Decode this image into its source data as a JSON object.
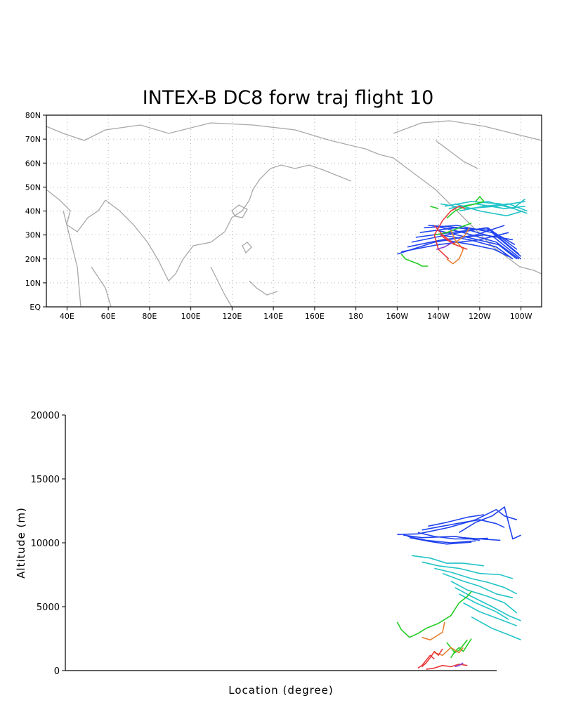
{
  "chart_data": [
    {
      "type": "line",
      "title": "INTEX-B DC8 forw traj flight 10",
      "xlabel": "",
      "ylabel": "",
      "xlim": [
        30,
        270
      ],
      "ylim": [
        0,
        80
      ],
      "x_ticks": [
        "40E",
        "60E",
        "80E",
        "100E",
        "120E",
        "140E",
        "160E",
        "180",
        "160W",
        "140W",
        "120W",
        "100W"
      ],
      "y_ticks": [
        "EQ",
        "10N",
        "20N",
        "30N",
        "40N",
        "50N",
        "60N",
        "70N",
        "80N"
      ],
      "grid": true,
      "basemap": "coastlines",
      "colors": {
        "blue": "#2244ee",
        "cyan": "#22c4c8",
        "green": "#22cc22",
        "orange": "#e88030",
        "red": "#e83a3a",
        "purple": "#8a3ad8"
      },
      "series": [
        {
          "color": "blue",
          "x": [
            [
              200,
              218,
              238,
              252
            ],
            [
              202,
              220,
              240,
              254
            ],
            [
              205,
              222,
              242,
              256
            ],
            [
              207,
              224,
              243,
              257
            ],
            [
              209,
              226,
              244,
              258
            ],
            [
              211,
              228,
              245,
              259
            ],
            [
              213,
              229,
              246,
              260
            ],
            [
              215,
              231,
              247,
              260
            ],
            [
              217,
              232,
              248,
              259
            ],
            [
              219,
              234,
              249,
              258
            ],
            [
              221,
              235,
              248,
              256
            ],
            [
              222,
              236,
              247,
              254
            ]
          ],
          "y": [
            [
              22,
              27,
              30,
              34
            ],
            [
              23,
              26,
              28,
              31
            ],
            [
              25,
              28,
              30,
              28
            ],
            [
              27,
              30,
              33,
              26
            ],
            [
              29,
              31,
              33,
              24
            ],
            [
              31,
              33,
              32,
              22
            ],
            [
              33,
              34,
              31,
              21
            ],
            [
              34,
              33,
              29,
              20
            ],
            [
              34,
              31,
              27,
              20
            ],
            [
              32,
              29,
              26,
              20
            ],
            [
              30,
              28,
              25,
              20
            ],
            [
              28,
              26,
              24,
              21
            ]
          ]
        },
        {
          "color": "cyan",
          "x": [
            [
              221,
              234,
              248,
              262
            ],
            [
              223,
              236,
              250,
              263
            ],
            [
              225,
              238,
              252,
              262
            ],
            [
              228,
              240,
              253,
              261
            ],
            [
              230,
              242,
              254,
              263
            ],
            [
              232,
              244,
              256,
              262
            ]
          ],
          "y": [
            [
              43,
              41,
              42,
              44
            ],
            [
              42,
              44,
              43,
              39
            ],
            [
              41,
              43,
              41,
              42
            ],
            [
              43,
              40,
              38,
              40
            ],
            [
              40,
              42,
              43,
              40
            ],
            [
              42,
              44,
              41,
              45
            ]
          ]
        },
        {
          "color": "green",
          "x": [
            [
              202,
              204,
              207,
              210,
              212,
              215
            ],
            [
              224,
              228,
              233,
              238,
              242,
              240,
              238
            ],
            [
              218,
              224,
              230,
              236
            ],
            [
              216,
              220
            ]
          ],
          "y": [
            [
              22,
              20,
              19,
              18,
              17,
              17
            ],
            [
              37,
              40,
              42,
              43,
              44,
              46,
              44
            ],
            [
              30,
              31,
              33,
              35
            ],
            [
              42,
              41
            ]
          ]
        },
        {
          "color": "orange",
          "x": [
            [
              224,
              227,
              230,
              232,
              228,
              226
            ],
            [
              227,
              230,
              233,
              235
            ]
          ],
          "y": [
            [
              20,
              18,
              20,
              24,
              28,
              32
            ],
            [
              26,
              28,
              30,
              33
            ]
          ]
        },
        {
          "color": "red",
          "x": [
            [
              218,
              222,
              228,
              234
            ],
            [
              225,
              220,
              218,
              222,
              226,
              230,
              233
            ],
            [
              221,
              224,
              226,
              228
            ]
          ],
          "y": [
            [
              34,
              30,
              26,
              24
            ],
            [
              20,
              24,
              30,
              36,
              40,
              42,
              41
            ],
            [
              30,
              28,
              27,
              26
            ]
          ]
        },
        {
          "color": "purple",
          "x": [
            [
              219,
              223,
              227
            ]
          ],
          "y": [
            [
              24,
              25,
              27
            ]
          ]
        }
      ]
    },
    {
      "type": "line",
      "title": "",
      "xlabel": "Location (degree)",
      "ylabel": "Altitude (m)",
      "ylim": [
        0,
        20000
      ],
      "y_ticks": [
        "0",
        "5000",
        "10000",
        "15000",
        "20000"
      ],
      "grid": false,
      "series": [
        {
          "color": "blue",
          "x": [
            [
              200,
              210,
              225,
              238,
              248,
              252,
              258
            ],
            [
              203,
              212,
              228,
              240
            ],
            [
              205,
              214,
              226,
              238
            ],
            [
              206,
              216,
              224,
              236
            ],
            [
              210,
              218,
              228,
              236,
              244
            ],
            [
              212,
              222,
              232,
              240,
              248,
              252
            ],
            [
              215,
              224,
              234,
              242
            ],
            [
              230,
              238,
              246,
              252,
              256,
              260
            ],
            [
              232,
              240,
              250
            ]
          ],
          "y": [
            [
              10650,
              10700,
              11200,
              11800,
              12600,
              12100,
              11800
            ],
            [
              10600,
              10400,
              10500,
              10200
            ],
            [
              10500,
              10200,
              10000,
              10150
            ],
            [
              10400,
              10100,
              9900,
              10050
            ],
            [
              10800,
              10500,
              10300,
              10300,
              10350
            ],
            [
              11000,
              11300,
              11600,
              11800,
              11500,
              11200
            ],
            [
              11300,
              11600,
              12000,
              12200
            ],
            [
              10800,
              11600,
              12100,
              12800,
              10300,
              10600
            ],
            [
              10400,
              10300,
              10200
            ]
          ]
        },
        {
          "color": "cyan",
          "x": [
            [
              207,
              216,
              224,
              232,
              242
            ],
            [
              212,
              220,
              230,
              240,
              250,
              256
            ],
            [
              218,
              226,
              236,
              244,
              252,
              258
            ],
            [
              222,
              232,
              240,
              248,
              256
            ],
            [
              226,
              234,
              244,
              252,
              258
            ],
            [
              228,
              236,
              246,
              254,
              260
            ],
            [
              230,
              238,
              248,
              254
            ],
            [
              232,
              240,
              250,
              258
            ],
            [
              236,
              246,
              254,
              260
            ]
          ],
          "y": [
            [
              9000,
              8800,
              8400,
              8400,
              8200
            ],
            [
              8500,
              8200,
              8000,
              7600,
              7500,
              7200
            ],
            [
              8000,
              7700,
              7200,
              6900,
              6500,
              6000
            ],
            [
              7600,
              7000,
              6600,
              6000,
              5700
            ],
            [
              7000,
              6300,
              5800,
              5300,
              4500
            ],
            [
              6500,
              5800,
              5000,
              4300,
              3900
            ],
            [
              6000,
              5300,
              4600,
              4000
            ],
            [
              5300,
              4600,
              4000,
              3500
            ],
            [
              4200,
              3300,
              2800,
              2400
            ]
          ]
        },
        {
          "color": "green",
          "x": [
            [
              200,
              202,
              206,
              210,
              214,
              220,
              226,
              230,
              234,
              236
            ],
            [
              226,
              228,
              230,
              232,
              234,
              236
            ],
            [
              224,
              226,
              228,
              230,
              232,
              234
            ]
          ],
          "y": [
            [
              3800,
              3200,
              2600,
              2900,
              3300,
              3700,
              4300,
              5300,
              5800,
              6200
            ],
            [
              1000,
              1500,
              1800,
              1500,
              2000,
              2500
            ],
            [
              2200,
              1800,
              1400,
              1600,
              2000,
              2400
            ]
          ]
        },
        {
          "color": "orange",
          "x": [
            [
              212,
              214,
              216,
              218,
              220,
              222,
              223
            ],
            [
              218,
              220,
              222,
              224,
              226,
              228,
              230,
              232
            ]
          ],
          "y": [
            [
              2600,
              2500,
              2400,
              2600,
              2800,
              3000,
              3800
            ],
            [
              1400,
              1300,
              1200,
              1500,
              1800,
              1600,
              1400,
              1800
            ]
          ]
        },
        {
          "color": "red",
          "x": [
            [
              210,
              212,
              214,
              216,
              218
            ],
            [
              212,
              214,
              216,
              218,
              220,
              222
            ],
            [
              214,
              218,
              222,
              226,
              230,
              234
            ]
          ],
          "y": [
            [
              200,
              400,
              800,
              1200,
              900
            ],
            [
              300,
              600,
              1000,
              1500,
              1200,
              1700
            ],
            [
              100,
              200,
              400,
              300,
              500,
              400
            ]
          ]
        },
        {
          "color": "purple",
          "x": [
            [
              228,
              230,
              232
            ]
          ],
          "y": [
            [
              300,
              400,
              600
            ]
          ]
        }
      ]
    }
  ]
}
